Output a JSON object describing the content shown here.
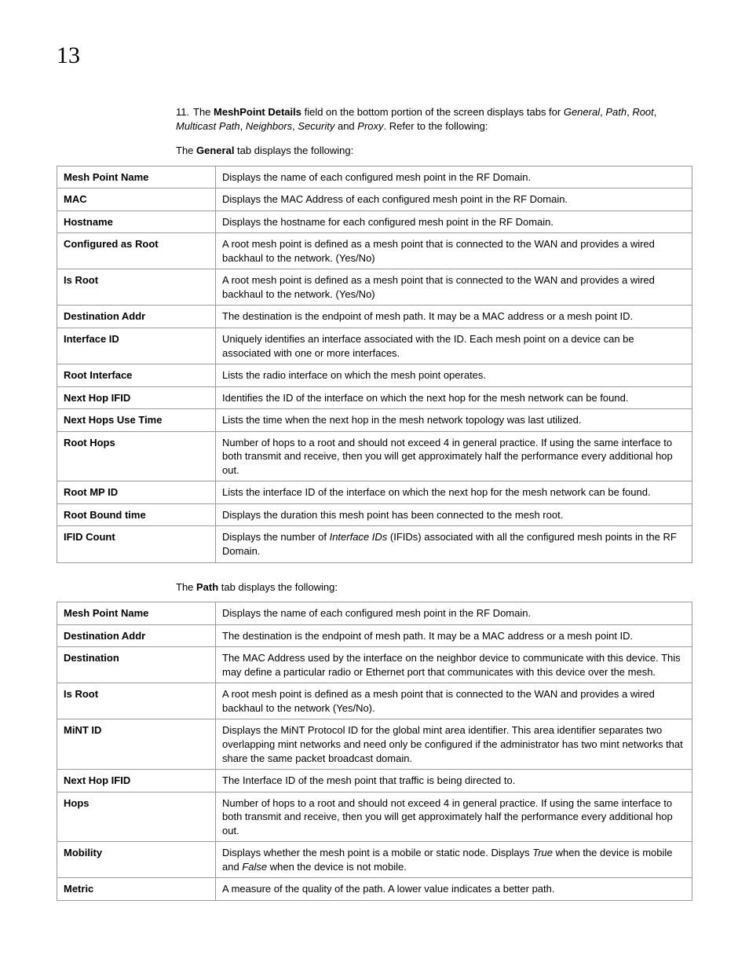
{
  "chapter_number": "13",
  "list_item": {
    "num": "11.",
    "parts": [
      {
        "t": "The "
      },
      {
        "t": "MeshPoint Details",
        "b": true
      },
      {
        "t": " field on the bottom portion of the screen displays tabs for "
      },
      {
        "t": "General",
        "i": true
      },
      {
        "t": ", "
      },
      {
        "t": "Path",
        "i": true
      },
      {
        "t": ", "
      },
      {
        "t": "Root",
        "i": true
      },
      {
        "t": ", "
      },
      {
        "t": "Multicast Path",
        "i": true
      },
      {
        "t": ", "
      },
      {
        "t": "Neighbors",
        "i": true
      },
      {
        "t": ", "
      },
      {
        "t": "Security",
        "i": true
      },
      {
        "t": " and "
      },
      {
        "t": "Proxy",
        "i": true
      },
      {
        "t": ". Refer to the following:"
      }
    ]
  },
  "intro_general": [
    {
      "t": "The "
    },
    {
      "t": "General",
      "b": true
    },
    {
      "t": " tab displays the following:"
    }
  ],
  "table_general": [
    {
      "k": "Mesh Point Name",
      "v": [
        {
          "t": "Displays the name of each configured mesh point in the RF Domain."
        }
      ]
    },
    {
      "k": "MAC",
      "v": [
        {
          "t": "Displays the MAC Address of each configured mesh point in the RF Domain."
        }
      ]
    },
    {
      "k": "Hostname",
      "v": [
        {
          "t": "Displays the hostname for each configured mesh point in the RF Domain."
        }
      ]
    },
    {
      "k": "Configured as Root",
      "v": [
        {
          "t": "A root mesh point is defined as a mesh point that is connected to the WAN and provides a wired backhaul to the network. (Yes/No)"
        }
      ]
    },
    {
      "k": "Is Root",
      "v": [
        {
          "t": "A root mesh point is defined as a mesh point that is connected to the WAN and provides a wired backhaul to the network. (Yes/No)"
        }
      ]
    },
    {
      "k": "Destination Addr",
      "v": [
        {
          "t": "The destination is the endpoint of mesh path. It may be a MAC address or a mesh point ID."
        }
      ]
    },
    {
      "k": "Interface ID",
      "v": [
        {
          "t": "Uniquely identifies an interface associated with the ID. Each mesh point on a device can be associated with one or more interfaces."
        }
      ]
    },
    {
      "k": "Root Interface",
      "v": [
        {
          "t": "Lists the radio interface on which the mesh point operates."
        }
      ]
    },
    {
      "k": "Next Hop IFID",
      "v": [
        {
          "t": "Identifies the ID of the interface on which the next hop for the mesh network can be found."
        }
      ]
    },
    {
      "k": "Next Hops Use Time",
      "v": [
        {
          "t": "Lists the time when the next hop in the mesh network topology was last utilized."
        }
      ]
    },
    {
      "k": "Root Hops",
      "v": [
        {
          "t": "Number of hops to a root and should not exceed 4 in general practice. If using the same interface to both transmit and receive, then you will get approximately half the performance every additional hop out."
        }
      ]
    },
    {
      "k": "Root MP ID",
      "v": [
        {
          "t": "Lists the interface ID of the interface on which the next hop for the mesh network can be found."
        }
      ]
    },
    {
      "k": "Root Bound time",
      "v": [
        {
          "t": "Displays the duration this mesh point has been connected to the mesh root."
        }
      ]
    },
    {
      "k": "IFID Count",
      "v": [
        {
          "t": "Displays the number of "
        },
        {
          "t": "Interface IDs",
          "i": true
        },
        {
          "t": " (IFIDs) associated with all the configured mesh points in the RF Domain."
        }
      ]
    }
  ],
  "intro_path": [
    {
      "t": "The "
    },
    {
      "t": "Path",
      "b": true
    },
    {
      "t": " tab displays the following:"
    }
  ],
  "table_path": [
    {
      "k": "Mesh Point Name",
      "v": [
        {
          "t": "Displays the name of each configured mesh point in the RF Domain."
        }
      ]
    },
    {
      "k": "Destination Addr",
      "v": [
        {
          "t": "The destination is the endpoint of mesh path. It may be a MAC address or a mesh point ID."
        }
      ]
    },
    {
      "k": "Destination",
      "v": [
        {
          "t": "The MAC Address used by the interface on the neighbor device to communicate with this device. This may define a particular radio or Ethernet port that communicates with this device over the mesh."
        }
      ]
    },
    {
      "k": "Is Root",
      "v": [
        {
          "t": "A root mesh point is defined as a mesh point that is connected to the WAN and provides a wired backhaul to the network (Yes/No)."
        }
      ]
    },
    {
      "k": "MiNT ID",
      "v": [
        {
          "t": "Displays the MiNT Protocol ID for the global mint area identifier. This area identifier separates two overlapping mint networks and need only be configured if the administrator has two mint networks that share the same packet broadcast domain."
        }
      ]
    },
    {
      "k": "Next Hop IFID",
      "v": [
        {
          "t": "The Interface ID of the mesh point that traffic is being directed to."
        }
      ]
    },
    {
      "k": "Hops",
      "v": [
        {
          "t": "Number of hops to a root and should not exceed 4 in general practice. If using the same interface to both transmit and receive, then you will get approximately half the performance every additional hop out."
        }
      ]
    },
    {
      "k": "Mobility",
      "v": [
        {
          "t": "Displays whether the mesh point is a mobile or static node. Displays "
        },
        {
          "t": "True",
          "i": true
        },
        {
          "t": " when the device is mobile and "
        },
        {
          "t": "False",
          "i": true
        },
        {
          "t": " when the device is not mobile."
        }
      ]
    },
    {
      "k": "Metric",
      "v": [
        {
          "t": "A measure of the quality of the path. A lower value indicates a better path."
        }
      ]
    }
  ]
}
